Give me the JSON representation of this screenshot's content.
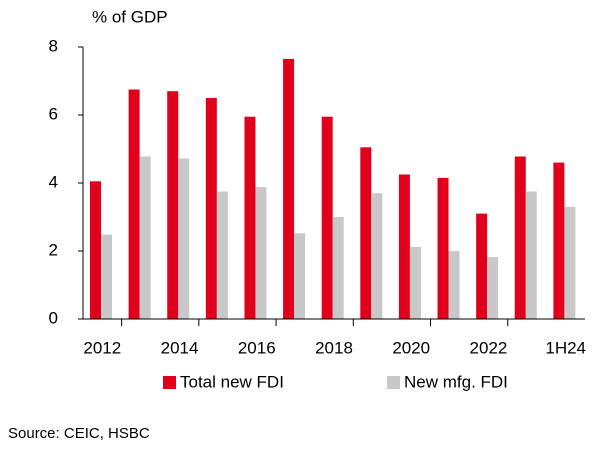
{
  "chart_data": {
    "type": "bar",
    "y_label": "% of GDP",
    "categories": [
      "2012",
      null,
      "2014",
      null,
      "2016",
      null,
      "2018",
      null,
      "2020",
      null,
      "2022",
      null,
      "1H24"
    ],
    "series": [
      {
        "name": "Total new FDI",
        "color": "#e0001b",
        "values": [
          4.05,
          6.75,
          6.7,
          6.5,
          5.95,
          7.65,
          5.95,
          5.05,
          4.25,
          4.15,
          3.1,
          4.78,
          4.6
        ]
      },
      {
        "name": "New mfg. FDI",
        "color": "#c8c8c8",
        "values": [
          2.48,
          4.78,
          4.72,
          3.75,
          3.88,
          2.52,
          3.0,
          3.7,
          2.12,
          2.0,
          1.82,
          3.75,
          3.3
        ]
      }
    ],
    "ylim": [
      0,
      8
    ],
    "yticks": [
      0,
      2,
      4,
      6,
      8
    ],
    "source": "Source: CEIC, HSBC"
  }
}
